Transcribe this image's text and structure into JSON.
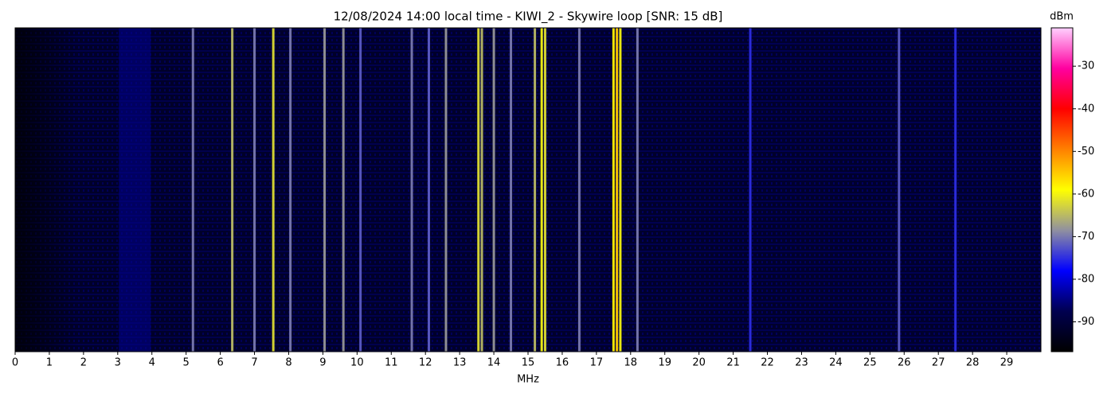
{
  "chart_data": {
    "type": "waterfall",
    "title": "12/08/2024 14:00 local time - KIWI_2 - Skywire loop [SNR: 15 dB]",
    "x_label": "MHz",
    "colorbar_label": "dBm",
    "xlim": [
      0,
      30
    ],
    "xticks": [
      0,
      1,
      2,
      3,
      4,
      5,
      6,
      7,
      8,
      9,
      10,
      11,
      12,
      13,
      14,
      15,
      16,
      17,
      18,
      19,
      20,
      21,
      22,
      23,
      24,
      25,
      26,
      27,
      28,
      29
    ],
    "clim": [
      -97,
      -21
    ],
    "cticks": [
      -90,
      -80,
      -70,
      -60,
      -50,
      -40,
      -30
    ],
    "colormap": [
      "#000000",
      "#000050",
      "#0000ff",
      "#9090a0",
      "#ffff00",
      "#ff8000",
      "#ff0000",
      "#ff00a0",
      "#ffd0ff"
    ],
    "signals": {
      "x": [
        3.5,
        5.2,
        6.35,
        7.0,
        7.55,
        8.05,
        9.05,
        9.6,
        10.1,
        11.6,
        12.1,
        12.6,
        13.55,
        13.65,
        14.0,
        14.5,
        15.2,
        15.4,
        15.5,
        16.5,
        17.5,
        17.6,
        17.7,
        18.2,
        21.5,
        25.85,
        27.5
      ],
      "values": [
        -84,
        -70,
        -65,
        -70,
        -62,
        -70,
        -68,
        -68,
        -72,
        -70,
        -72,
        -68,
        -62,
        -65,
        -68,
        -70,
        -65,
        -60,
        -62,
        -70,
        -58,
        -55,
        -60,
        -70,
        -75,
        -72,
        -75
      ]
    }
  }
}
